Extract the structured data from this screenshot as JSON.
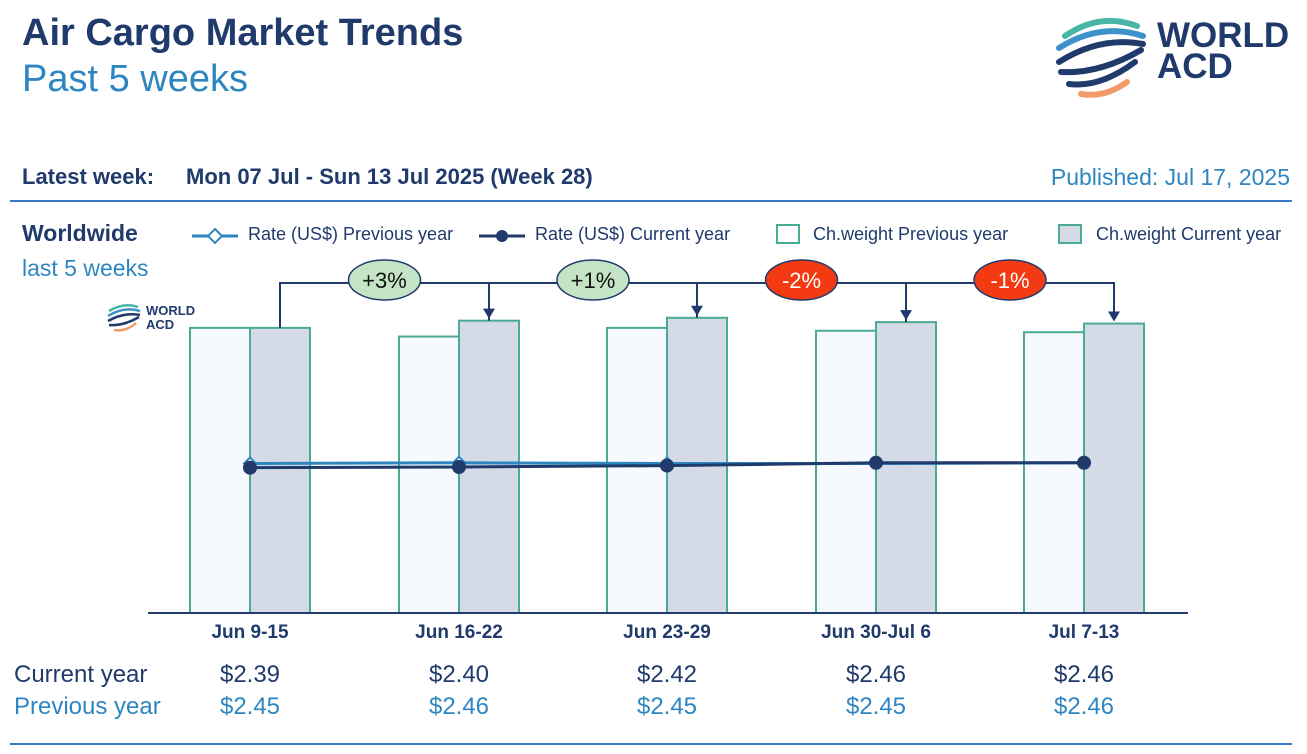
{
  "header": {
    "title": "Air Cargo Market Trends",
    "subtitle": "Past 5 weeks",
    "logo_line1": "WORLD",
    "logo_line2": "ACD"
  },
  "info_bar": {
    "latest_week_label": "Latest week:",
    "latest_week_value": "Mon 07 Jul - Sun 13 Jul 2025 (Week 28)",
    "published": "Published: Jul 17, 2025"
  },
  "panel": {
    "region": "Worldwide",
    "period": "last 5 weeks"
  },
  "legend": {
    "rate_prev": "Rate (US$) Previous year",
    "rate_cur": "Rate (US$) Current year",
    "weight_prev": "Ch.weight Previous year",
    "weight_cur": "Ch.weight Current year"
  },
  "rows": {
    "current_label": "Current year",
    "previous_label": "Previous year"
  },
  "colors": {
    "navy": "#1f3a6b",
    "blue": "#2e86c1",
    "teal": "#4aab95",
    "bar_prev_fill": "#f6f9fd",
    "bar_cur_fill": "#d4dbe6",
    "badge_positive": "#c5e4c5",
    "badge_negative": "#f33a12",
    "logo_stripes": [
      "#49b5a6",
      "#3d93c9",
      "#1f3a6b",
      "#f39a6b"
    ]
  },
  "chart_data": {
    "type": "bar",
    "categories": [
      "Jun 9-15",
      "Jun 16-22",
      "Jun 23-29",
      "Jun 30-Jul 6",
      "Jul 7-13"
    ],
    "series": [
      {
        "name": "Ch.weight Previous year",
        "kind": "bar",
        "values": [
          99,
          96,
          99,
          98,
          97.5
        ]
      },
      {
        "name": "Ch.weight Current year",
        "kind": "bar",
        "values": [
          99,
          101.5,
          102.5,
          101,
          100.5
        ]
      },
      {
        "name": "Rate (US$) Previous year",
        "kind": "line",
        "values": [
          2.45,
          2.46,
          2.45,
          2.45,
          2.46
        ]
      },
      {
        "name": "Rate (US$) Current year",
        "kind": "line",
        "values": [
          2.39,
          2.4,
          2.42,
          2.46,
          2.46
        ]
      }
    ],
    "current_year_labels": [
      "$2.39",
      "$2.40",
      "$2.42",
      "$2.46",
      "$2.46"
    ],
    "previous_year_labels": [
      "$2.45",
      "$2.46",
      "$2.45",
      "$2.45",
      "$2.46"
    ],
    "week_changes": [
      {
        "label": "+3%",
        "from": 0,
        "to": 1,
        "sign": "positive"
      },
      {
        "label": "+1%",
        "from": 1,
        "to": 2,
        "sign": "positive"
      },
      {
        "label": "-2%",
        "from": 2,
        "to": 3,
        "sign": "negative"
      },
      {
        "label": "-1%",
        "from": 3,
        "to": 4,
        "sign": "negative"
      }
    ],
    "legend_position": "top",
    "grid": false
  }
}
